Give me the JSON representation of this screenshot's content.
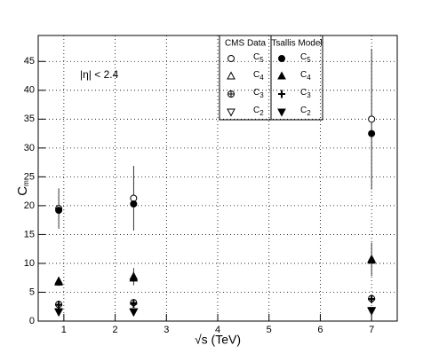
{
  "chart_data": {
    "type": "scatter",
    "xlabel": "√s (TeV)",
    "ylabel": "Cm",
    "annotation": "|η| < 2.4",
    "xlim": [
      0.5,
      7.5
    ],
    "xticks": [
      1,
      2,
      3,
      4,
      5,
      6,
      7
    ],
    "ylim": [
      0,
      49.5
    ],
    "yticks": [
      0,
      5,
      10,
      15,
      20,
      25,
      30,
      35,
      40,
      45
    ],
    "grid": true,
    "legend_groups": [
      "CMS  Data",
      "Tsallis Model"
    ],
    "x": [
      0.9,
      2.36,
      7
    ],
    "series": [
      {
        "name": "C5",
        "group": 0,
        "marker": "circle",
        "filled": false,
        "color": "#000000",
        "values": [
          19.5,
          21.3,
          35
        ],
        "errors": [
          3.5,
          5.6,
          12.2
        ]
      },
      {
        "name": "C4",
        "group": 0,
        "marker": "triangle-up",
        "filled": false,
        "color": "#000000",
        "values": [
          6.9,
          7.7,
          10.7
        ],
        "errors": [
          0.8,
          1.5,
          2.9
        ]
      },
      {
        "name": "C3",
        "group": 0,
        "marker": "cross-circle",
        "filled": false,
        "color": "#000000",
        "values": [
          2.9,
          3.2,
          3.9
        ],
        "errors": [
          0.5,
          0.5,
          0.6
        ]
      },
      {
        "name": "C2",
        "group": 0,
        "marker": "triangle-down",
        "filled": false,
        "color": "#000000",
        "values": [
          1.7,
          1.6,
          1.9
        ],
        "errors": [
          0.2,
          0.3,
          0.3
        ]
      },
      {
        "name": "C5",
        "group": 1,
        "marker": "circle",
        "filled": true,
        "color": "#000000",
        "values": [
          19.2,
          20.3,
          32.5
        ]
      },
      {
        "name": "C4",
        "group": 1,
        "marker": "triangle-up",
        "filled": true,
        "color": "#000000",
        "values": [
          6.7,
          7.4,
          10.5
        ]
      },
      {
        "name": "C3",
        "group": 1,
        "marker": "star",
        "filled": true,
        "color": "#000000",
        "values": [
          2.8,
          3.0,
          3.8
        ]
      },
      {
        "name": "C2",
        "group": 1,
        "marker": "triangle-down",
        "filled": true,
        "color": "#000000",
        "values": [
          1.6,
          1.7,
          1.8
        ]
      }
    ]
  }
}
